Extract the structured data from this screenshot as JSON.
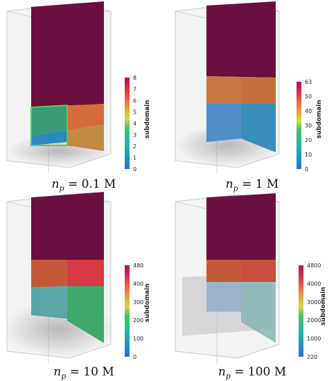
{
  "colorbar_title": "subdomain",
  "panels": [
    {
      "caption_var": "n",
      "caption_sub": "p",
      "caption_value": "= 0.1 M",
      "ticks": [
        "0",
        "1",
        "2",
        "3",
        "4",
        "5",
        "6",
        "7",
        "8"
      ]
    },
    {
      "caption_var": "n",
      "caption_sub": "p",
      "caption_value": "= 1 M",
      "ticks": [
        "0",
        "10",
        "20",
        "30",
        "40",
        "50",
        "63"
      ]
    },
    {
      "caption_var": "n",
      "caption_sub": "p",
      "caption_value": "= 10 M",
      "ticks": [
        "0",
        "100",
        "200",
        "300",
        "400",
        "480"
      ]
    },
    {
      "caption_var": "n",
      "caption_sub": "p",
      "caption_value": "= 100 M",
      "ticks": [
        "220",
        "1000",
        "2000",
        "3000",
        "4000",
        "4800"
      ]
    }
  ],
  "colors": {
    "subdomain_max": "#6b0f3f",
    "box_edge": "#bdbdbd",
    "box_face": "#f2f2f2"
  }
}
